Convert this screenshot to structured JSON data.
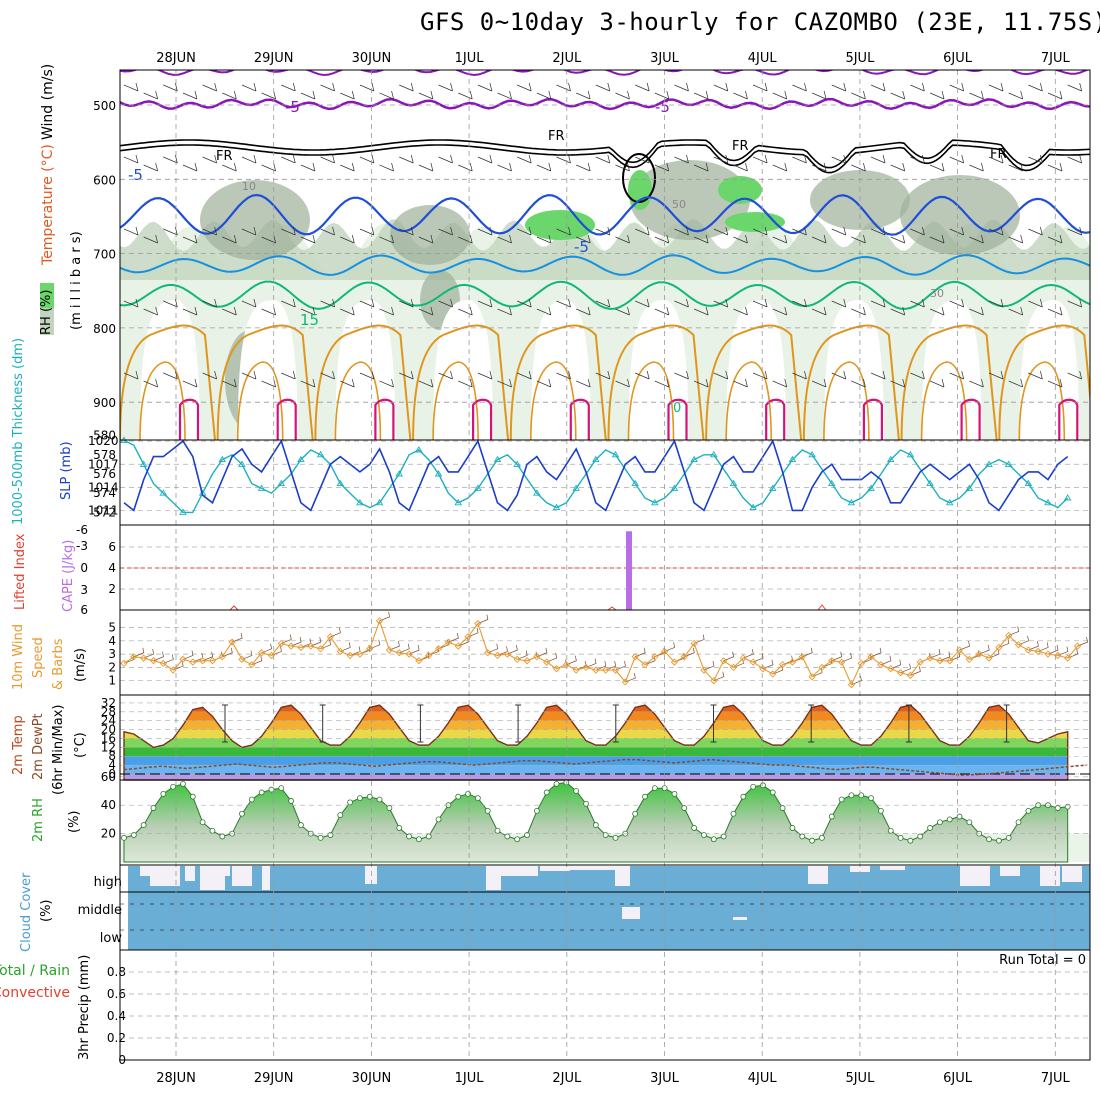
{
  "title": "GFS 0~10day 3-hourly for CAZOMBO (23E, 11.75S)",
  "dates": [
    "28JUN",
    "29JUN",
    "30JUN",
    "1JUL",
    "2JUL",
    "3JUL",
    "4JUL",
    "5JUL",
    "6JUL",
    "7JUL"
  ],
  "colors": {
    "rh_light": "#e8f2e6",
    "rh_mid": "#c2d4be",
    "rh_dark": "#9eb09a",
    "rh_green": "#6bd66b",
    "temp_purple": "#8a16b8",
    "temp_blue": "#1f4fd8",
    "temp_cyan": "#1890e0",
    "temp_green": "#0fb87a",
    "temp_orange": "#e0961c",
    "temp_magenta": "#d4127a",
    "slp": "#1a3fc8",
    "thick": "#1cb0c0",
    "cape": "#b86ee8",
    "li": "#e04030",
    "wind": "#e89a30",
    "dew": "#8a4a2a",
    "cloud_blue": "#6aaed6",
    "cloud_white": "#f4f0f8"
  },
  "labels": {
    "panel1": {
      "wind": "Wind (m/s)",
      "temp": "Temperature (°C)",
      "rh": "RH (%)",
      "mb": "(m i l l i b a r s)"
    },
    "panel2": {
      "thick": "1000-500mb Thickness (dm)",
      "slp": "SLP (mb)"
    },
    "panel3": {
      "li": "Lifted Index",
      "cape": "CAPE (J/kg)"
    },
    "panel4": {
      "a": "10m Wind",
      "b": "Speed",
      "c": "& Barbs",
      "unit": "(m/s)"
    },
    "panel5": {
      "a": "2m Temp",
      "b": "2m DewPt",
      "c": "(6hr Min/Max)",
      "unit": "(°C)"
    },
    "panel6": {
      "a": "2m RH",
      "unit": "(%)"
    },
    "panel7": {
      "a": "Cloud Cover",
      "unit": "(%)",
      "high": "high",
      "middle": "middle",
      "low": "low"
    },
    "panel8": {
      "a": "Total / Rain",
      "b": "Convective",
      "c": "3hr Precip (mm)",
      "run_total": "Run Total = 0"
    }
  },
  "contour_labels": {
    "m5_upper": "-5",
    "m5_upper2": "-5",
    "fr": "FR",
    "m5": "-5",
    "m5b": "-5",
    "p15": "15",
    "p10": "10",
    "p50": "50",
    "p30": "30",
    "p0": "0"
  },
  "chart_data": [
    {
      "type": "heatmap",
      "panel": "upper-air",
      "ylabel": "millibars",
      "yticks": [
        500,
        600,
        700,
        800,
        900
      ],
      "ylim": [
        950,
        450
      ],
      "contours": [
        "-5",
        "FR",
        "-5",
        "15"
      ]
    },
    {
      "type": "line",
      "panel": "slp-thickness",
      "slp_ticks": [
        1011,
        1014,
        1017,
        1020
      ],
      "thick_ticks": [
        572,
        574,
        576,
        578,
        580
      ],
      "series": [
        {
          "name": "SLP (mb)",
          "axis": "right",
          "values": [
            1012,
            1011,
            1015,
            1018,
            1018,
            1019,
            1020,
            1018,
            1013,
            1012,
            1015,
            1018,
            1019,
            1017,
            1016,
            1018,
            1020,
            1016,
            1012,
            1011,
            1014,
            1017,
            1018,
            1017,
            1016,
            1017,
            1019,
            1016,
            1012,
            1011,
            1014,
            1017,
            1018,
            1016,
            1016,
            1018,
            1020,
            1016,
            1012,
            1011,
            1013,
            1017,
            1018,
            1016,
            1015,
            1017,
            1019,
            1016,
            1012,
            1011,
            1014,
            1017,
            1018,
            1016,
            1016,
            1018,
            1020,
            1016,
            1012,
            1011,
            1014,
            1017,
            1018,
            1016,
            1016,
            1018,
            1020,
            1016,
            1011,
            1011,
            1014,
            1016,
            1017,
            1015,
            1015,
            1015,
            1016,
            1015,
            1012,
            1012,
            1014,
            1016,
            1017,
            1016,
            1015,
            1016,
            1017,
            1015,
            1012,
            1011,
            1013,
            1015,
            1016,
            1016,
            1015,
            1017,
            1018
          ]
        },
        {
          "name": "Thickness (dm)",
          "axis": "left",
          "values": [
            579.5,
            579,
            577,
            575,
            574,
            573,
            572,
            572,
            574,
            576,
            577.5,
            578,
            577,
            575,
            574.5,
            574,
            575,
            576,
            577.5,
            578.5,
            578,
            577,
            575,
            574,
            573,
            572.5,
            573,
            574.5,
            576,
            578,
            578.5,
            577.5,
            576,
            574,
            573,
            573.5,
            574.5,
            576,
            577.5,
            578,
            577,
            575.5,
            574,
            573,
            572.5,
            573,
            574.5,
            576,
            577.5,
            578.5,
            578,
            576.5,
            575,
            573.5,
            573,
            573.5,
            574.5,
            576,
            577.5,
            578,
            578,
            576.5,
            575,
            573.5,
            572.5,
            573,
            574.5,
            576,
            577.5,
            578.5,
            578,
            576.5,
            575,
            573.5,
            573,
            573.5,
            574.5,
            576,
            577.5,
            578.5,
            578,
            576.5,
            575,
            573.5,
            573,
            573.5,
            574.5,
            576,
            577,
            577.5,
            577,
            576,
            575,
            573.5,
            573,
            572.5,
            573.5
          ]
        }
      ]
    },
    {
      "type": "bar",
      "panel": "cape-li",
      "li_ticks": [
        "-6",
        "-3",
        "0",
        "3",
        "6"
      ],
      "cape_ticks": [
        2,
        4,
        6
      ],
      "cape_spike": {
        "date": "2JUL 15Z",
        "value": 7.5
      }
    },
    {
      "type": "line",
      "panel": "wind10m",
      "yticks": [
        1,
        2,
        3,
        4,
        5
      ],
      "series": [
        {
          "name": "10m Wind Speed (m/s)",
          "values": [
            2.3,
            2.8,
            2.7,
            2.5,
            2.3,
            1.8,
            2.6,
            2.4,
            2.5,
            2.5,
            2.8,
            3.9,
            2.6,
            2.2,
            3.1,
            2.9,
            3.8,
            3.6,
            3.5,
            3.6,
            3.4,
            4.3,
            3.2,
            2.9,
            3.0,
            3.4,
            5.5,
            3.3,
            3.1,
            3.0,
            2.5,
            2.9,
            3.4,
            3.9,
            3.6,
            4.3,
            5.3,
            3.1,
            2.9,
            3.0,
            2.6,
            2.5,
            2.8,
            2.4,
            1.9,
            2.2,
            1.8,
            2.0,
            1.8,
            1.8,
            1.8,
            0.9,
            2.8,
            2.2,
            2.8,
            3.2,
            2.4,
            2.8,
            3.8,
            1.8,
            1.0,
            2.5,
            2.0,
            2.7,
            2.4,
            1.9,
            1.5,
            2.2,
            2.4,
            2.8,
            1.3,
            2.0,
            2.5,
            2.4,
            0.7,
            2.3,
            2.8,
            2.2,
            1.9,
            1.6,
            1.4,
            2.4,
            2.7,
            2.5,
            2.5,
            3.3,
            2.6,
            3.0,
            2.7,
            3.5,
            4.4,
            3.7,
            3.3,
            3.2,
            3.0,
            2.9,
            2.7,
            3.6
          ]
        }
      ]
    },
    {
      "type": "area",
      "panel": "temp-dewpt",
      "yticks": [
        0,
        4,
        8,
        12,
        16,
        20,
        24,
        28,
        32
      ],
      "series": [
        {
          "name": "2m Temp (°C)",
          "values": [
            19,
            18,
            15,
            12,
            13,
            16,
            22,
            29,
            30,
            26,
            20,
            15,
            12,
            13,
            17,
            23,
            30,
            31,
            27,
            21,
            15,
            13,
            13,
            17,
            23,
            30,
            31,
            27,
            21,
            15,
            13,
            13,
            17,
            23,
            30,
            31,
            27,
            21,
            15,
            13,
            13,
            17,
            23,
            30,
            31,
            27,
            21,
            15,
            13,
            13,
            17,
            23,
            30,
            31,
            27,
            21,
            15,
            13,
            13,
            17,
            23,
            30,
            31,
            27,
            21,
            15,
            13,
            13,
            17,
            23,
            30,
            31,
            27,
            21,
            15,
            13,
            13,
            17,
            23,
            30,
            31,
            27,
            21,
            15,
            13,
            13,
            17,
            23,
            30,
            31,
            27,
            21,
            15,
            14,
            16,
            18,
            19
          ]
        },
        {
          "name": "2m DewPt (°C)",
          "values": [
            2,
            2.5,
            3,
            3.5,
            3,
            2.5,
            3,
            3.5,
            4,
            4.5,
            4,
            3.5,
            3,
            3.5,
            4,
            4.5,
            5,
            5,
            4.5,
            4,
            3.5,
            4,
            4.5,
            5,
            5.5,
            5.5,
            5,
            4.5,
            4,
            4.5,
            5,
            5.5,
            6,
            6,
            5.5,
            5,
            4.5,
            5,
            5.5,
            6,
            6.5,
            6.5,
            6,
            5.5,
            5,
            5.5,
            6,
            6.5,
            6,
            5.5,
            5,
            4.5,
            4,
            4,
            3.5,
            3,
            2.5,
            2,
            2.5,
            3,
            3,
            2.5,
            2,
            1.5,
            1,
            0.5,
            0,
            -0.5,
            -0.3,
            0,
            0.5,
            1,
            1.5,
            2,
            2.5,
            3,
            3.5,
            4
          ]
        }
      ]
    },
    {
      "type": "area",
      "panel": "rh2m",
      "yticks": [
        20,
        40,
        60
      ],
      "series": [
        {
          "name": "2m RH (%)",
          "values": [
            17,
            19,
            26,
            38,
            48,
            53,
            55,
            46,
            28,
            22,
            18,
            20,
            34,
            44,
            49,
            51,
            52,
            43,
            26,
            20,
            17,
            19,
            33,
            42,
            45,
            46,
            44,
            38,
            24,
            18,
            16,
            18,
            30,
            40,
            46,
            48,
            45,
            36,
            22,
            18,
            16,
            19,
            36,
            49,
            55,
            56,
            50,
            41,
            26,
            19,
            17,
            20,
            34,
            46,
            52,
            52,
            48,
            38,
            24,
            19,
            16,
            18,
            34,
            46,
            53,
            54,
            49,
            38,
            24,
            18,
            15,
            17,
            32,
            44,
            47,
            47,
            45,
            36,
            22,
            17,
            15,
            18,
            24,
            28,
            30,
            32,
            28,
            20,
            16,
            15,
            17,
            28,
            36,
            40,
            40,
            38,
            39
          ]
        }
      ]
    },
    {
      "type": "bar",
      "panel": "cloud",
      "categories": [
        "high",
        "middle",
        "low"
      ]
    },
    {
      "type": "bar",
      "panel": "precip",
      "yticks": [
        0,
        0.2,
        0.4,
        0.6,
        0.8
      ],
      "values": [],
      "run_total": 0
    }
  ]
}
